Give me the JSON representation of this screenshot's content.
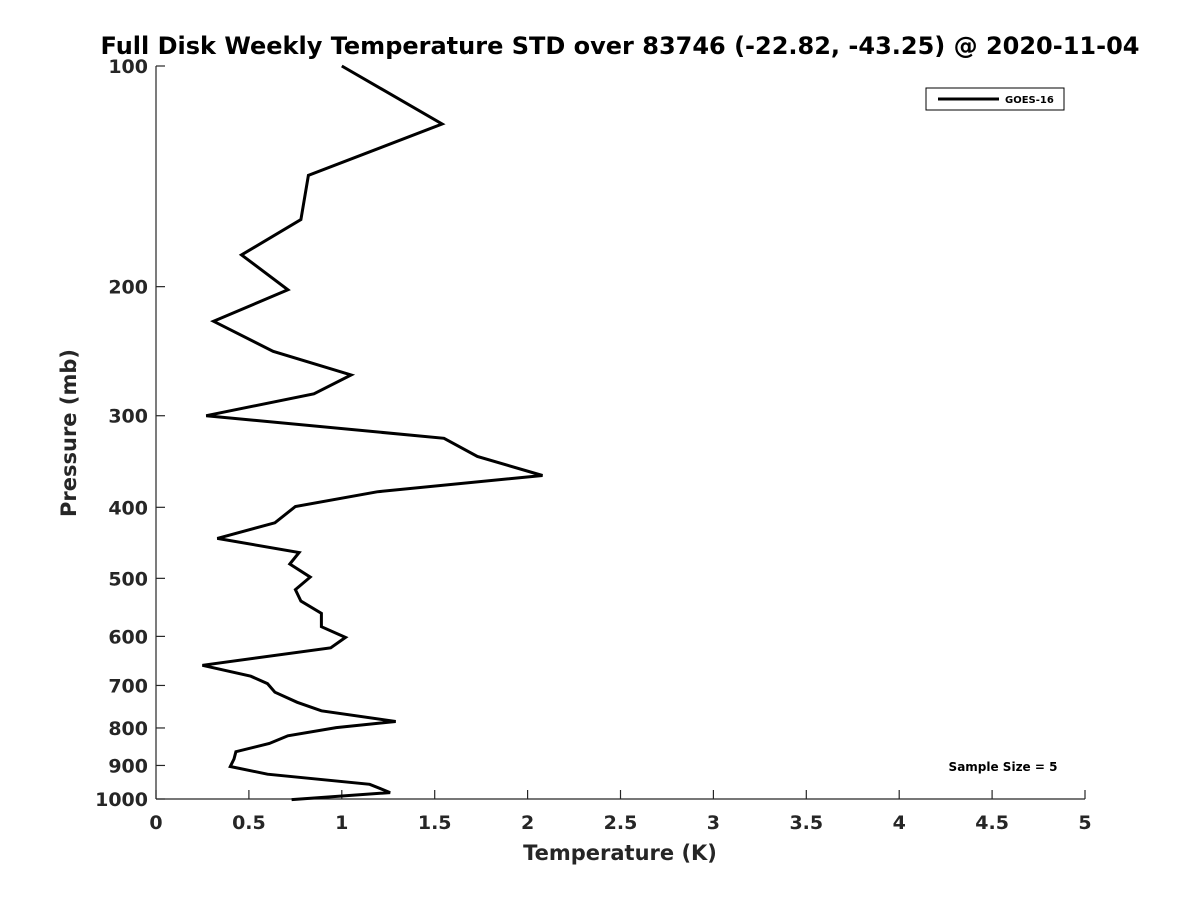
{
  "chart_data": {
    "type": "line",
    "title": "Full Disk Weekly Temperature STD over 83746 (-22.82, -43.25) @ 2020-11-04",
    "xlabel": "Temperature (K)",
    "ylabel": "Pressure (mb)",
    "xlim": [
      0,
      5
    ],
    "ylim": [
      1000,
      100
    ],
    "yscale": "log",
    "y_reversed": true,
    "grid": false,
    "legend_position": "top-right",
    "x_ticks": [
      "0",
      "0.5",
      "1",
      "1.5",
      "2",
      "2.5",
      "3",
      "3.5",
      "4",
      "4.5",
      "5"
    ],
    "y_ticks": [
      "100",
      "200",
      "300",
      "400",
      "500",
      "600",
      "700",
      "800",
      "900",
      "1000"
    ],
    "series": [
      {
        "name": "GOES-16",
        "color": "#000000",
        "x": [
          1.0,
          1.54,
          0.82,
          0.78,
          0.46,
          0.71,
          0.31,
          0.63,
          1.05,
          0.85,
          0.27,
          1.55,
          1.73,
          2.08,
          1.19,
          0.75,
          0.64,
          0.33,
          0.77,
          0.72,
          0.83,
          0.75,
          0.78,
          0.89,
          0.89,
          1.02,
          0.94,
          0.25,
          0.51,
          0.6,
          0.64,
          0.76,
          0.89,
          1.29,
          0.97,
          0.71,
          0.61,
          0.43,
          0.42,
          0.4,
          0.6,
          1.15,
          1.26,
          0.73
        ],
        "y": [
          100,
          120,
          141,
          162,
          181,
          202,
          223,
          245,
          264,
          280,
          300,
          322,
          341,
          362,
          381,
          399,
          420,
          441,
          461,
          478,
          498,
          518,
          537,
          558,
          582,
          602,
          622,
          657,
          680,
          696,
          715,
          738,
          758,
          784,
          799,
          820,
          840,
          862,
          882,
          903,
          925,
          955,
          980,
          1002
        ]
      }
    ],
    "legend_entries": [
      "GOES-16"
    ],
    "annotations": [
      "Sample Size = 5"
    ]
  }
}
